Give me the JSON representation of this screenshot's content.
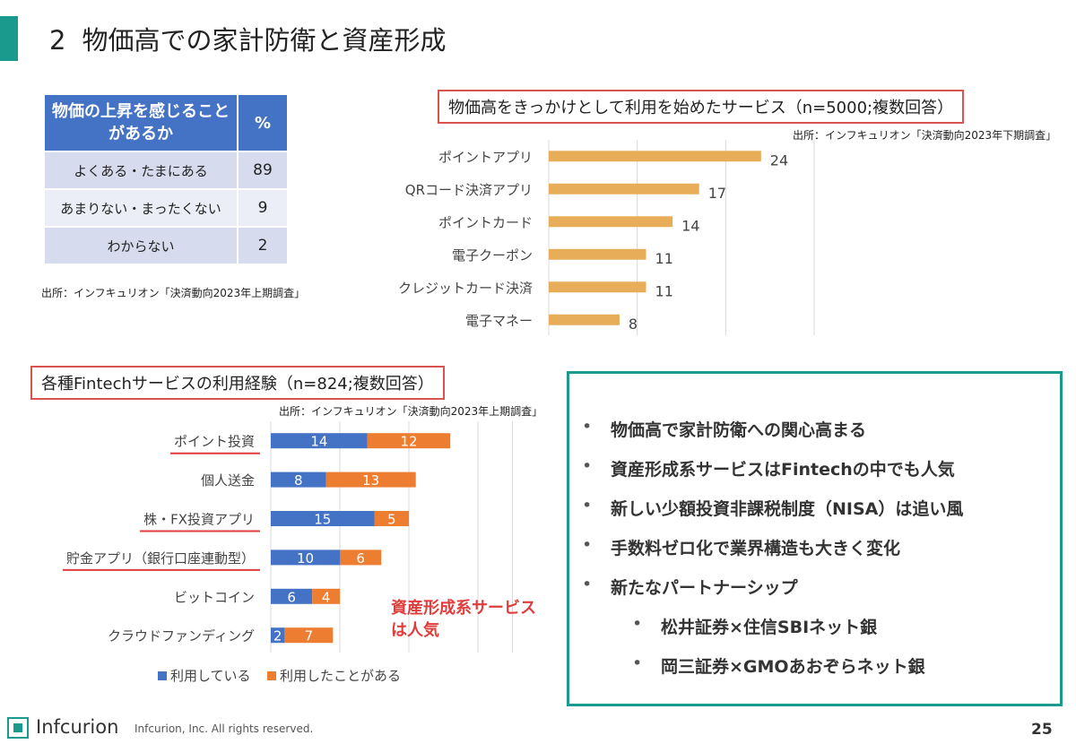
{
  "title": {
    "number": "2",
    "text": "物価高での家計防衛と資産形成"
  },
  "survey_table": {
    "header_question": "物価の上昇を感じることがあるか",
    "header_percent": "%",
    "rows": [
      {
        "label": "よくある・たまにある",
        "value": "89"
      },
      {
        "label": "あまりない・まったくない",
        "value": "9"
      },
      {
        "label": "わからない",
        "value": "2"
      }
    ],
    "source": "出所：インフキュリオン「決済動向2023年上期調査」"
  },
  "chart_data": [
    {
      "type": "bar",
      "orientation": "horizontal",
      "title": "物価高をきっかけとして利用を始めたサービス（n=5000;複数回答）",
      "source": "出所：インフキュリオン「決済動向2023年下期調査」",
      "categories": [
        "ポイントアプリ",
        "QRコード決済アプリ",
        "ポイントカード",
        "電子クーポン",
        "クレジットカード決済",
        "電子マネー"
      ],
      "values": [
        24,
        17,
        14,
        11,
        11,
        8
      ],
      "xlim": [
        0,
        30
      ],
      "color": "#e8ad59",
      "grid": true
    },
    {
      "type": "bar",
      "orientation": "horizontal",
      "stacked": true,
      "title": "各種Fintechサービスの利用経験（n=824;複数回答）",
      "source": "出所：インフキュリオン「決済動向2023年上期調査」",
      "categories": [
        "ポイント投資",
        "個人送金",
        "株・FX投資アプリ",
        "貯金アプリ（銀行口座連動型）",
        "ビットコイン",
        "クラウドファンディング"
      ],
      "highlighted": [
        true,
        false,
        true,
        true,
        false,
        false
      ],
      "series": [
        {
          "name": "利用している",
          "values": [
            14,
            8,
            15,
            10,
            6,
            2
          ],
          "color": "#4472c4"
        },
        {
          "name": "利用したことがある",
          "values": [
            12,
            13,
            5,
            6,
            4,
            7
          ],
          "color": "#ed7d31"
        }
      ],
      "xlim": [
        0,
        35
      ],
      "legend": "bottom",
      "grid": true,
      "annotation": [
        "資産形成系サービス",
        "は人気"
      ]
    }
  ],
  "bullets": [
    "物価高で家計防衛への関心高まる",
    "資産形成系サービスはFintechの中でも人気",
    "新しい少額投資非課税制度（NISA）は追い風",
    "手数料ゼロ化で業界構造も大きく変化",
    "新たなパートナーシップ",
    "松井証券×住信SBIネット銀",
    "岡三証券×GMOあおぞらネット銀"
  ],
  "colors": {
    "accent": "#1a9a8c",
    "highlight_red": "#e03c3c"
  },
  "footer": {
    "brand": "Infcurion",
    "copyright": "Infcurion, Inc.  All rights reserved.",
    "page_number": "25"
  }
}
